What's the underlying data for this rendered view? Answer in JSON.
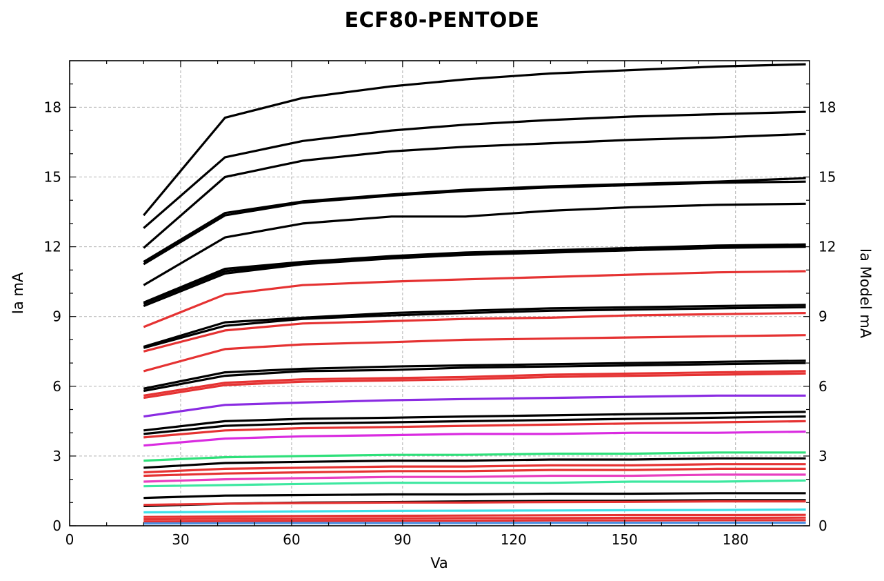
{
  "chart_data": {
    "type": "line",
    "title": "ECF80-PENTODE",
    "xlabel": "Va",
    "ylabel": "Ia mA",
    "ylabel_right": "Ia Model mA",
    "xlim": [
      0,
      200
    ],
    "ylim": [
      0,
      20
    ],
    "xticks": [
      0,
      30,
      60,
      90,
      120,
      150,
      180
    ],
    "yticks": [
      0,
      3,
      6,
      9,
      12,
      15,
      18
    ],
    "yticks_right": [
      0,
      3,
      6,
      9,
      12,
      15,
      18
    ],
    "grid": true,
    "legend": "none",
    "series": [
      {
        "color": "#000000",
        "x": [
          20,
          42,
          63,
          87,
          107,
          130,
          152,
          175,
          199
        ],
        "y": [
          13.35,
          17.55,
          18.4,
          18.9,
          19.2,
          19.45,
          19.6,
          19.75,
          19.85
        ]
      },
      {
        "color": "#000000",
        "x": [
          20,
          42,
          63,
          87,
          107,
          130,
          152,
          175,
          199
        ],
        "y": [
          12.8,
          15.85,
          16.55,
          17.0,
          17.25,
          17.45,
          17.6,
          17.7,
          17.8
        ]
      },
      {
        "color": "#000000",
        "x": [
          20,
          42,
          63,
          87,
          107,
          130,
          152,
          175,
          199
        ],
        "y": [
          11.95,
          15.0,
          15.7,
          16.1,
          16.3,
          16.45,
          16.6,
          16.7,
          16.85
        ]
      },
      {
        "color": "#000000",
        "x": [
          20,
          42,
          63,
          87,
          107,
          130,
          152,
          175,
          199
        ],
        "y": [
          11.35,
          13.45,
          13.95,
          14.25,
          14.45,
          14.6,
          14.7,
          14.8,
          14.95
        ]
      },
      {
        "color": "#000000",
        "x": [
          20,
          42,
          63,
          87,
          107,
          130,
          152,
          175,
          199
        ],
        "y": [
          11.25,
          13.35,
          13.9,
          14.2,
          14.4,
          14.55,
          14.65,
          14.75,
          14.8
        ]
      },
      {
        "color": "#000000",
        "x": [
          20,
          42,
          63,
          87,
          107,
          130,
          152,
          175,
          199
        ],
        "y": [
          10.35,
          12.4,
          13.0,
          13.3,
          13.3,
          13.55,
          13.7,
          13.8,
          13.85
        ]
      },
      {
        "color": "#000000",
        "x": [
          20,
          42,
          63,
          87,
          107,
          130,
          152,
          175,
          199
        ],
        "y": [
          9.6,
          11.05,
          11.35,
          11.6,
          11.75,
          11.85,
          11.95,
          12.05,
          12.1
        ]
      },
      {
        "color": "#000000",
        "x": [
          20,
          42,
          63,
          87,
          107,
          130,
          152,
          175,
          199
        ],
        "y": [
          9.55,
          10.95,
          11.3,
          11.55,
          11.7,
          11.8,
          11.9,
          12.0,
          12.05
        ]
      },
      {
        "color": "#000000",
        "x": [
          20,
          42,
          63,
          87,
          107,
          130,
          152,
          175,
          199
        ],
        "y": [
          9.45,
          10.85,
          11.25,
          11.5,
          11.65,
          11.75,
          11.85,
          11.95,
          12.0
        ]
      },
      {
        "color": "#e53232",
        "x": [
          20,
          42,
          63,
          87,
          107,
          130,
          152,
          175,
          199
        ],
        "y": [
          8.55,
          9.95,
          10.35,
          10.5,
          10.6,
          10.7,
          10.8,
          10.9,
          10.95
        ]
      },
      {
        "color": "#000000",
        "x": [
          20,
          42,
          63,
          87,
          107,
          130,
          152,
          175,
          199
        ],
        "y": [
          7.7,
          8.75,
          8.95,
          9.15,
          9.25,
          9.35,
          9.4,
          9.45,
          9.5
        ]
      },
      {
        "color": "#000000",
        "x": [
          20,
          42,
          63,
          87,
          107,
          130,
          152,
          175,
          199
        ],
        "y": [
          7.65,
          8.6,
          8.9,
          9.05,
          9.15,
          9.25,
          9.3,
          9.35,
          9.4
        ]
      },
      {
        "color": "#e53232",
        "x": [
          20,
          42,
          63,
          87,
          107,
          130,
          152,
          175,
          199
        ],
        "y": [
          7.5,
          8.4,
          8.7,
          8.8,
          8.9,
          8.95,
          9.05,
          9.1,
          9.15
        ]
      },
      {
        "color": "#e53232",
        "x": [
          20,
          42,
          63,
          87,
          107,
          130,
          152,
          175,
          199
        ],
        "y": [
          6.65,
          7.6,
          7.8,
          7.9,
          8.0,
          8.05,
          8.1,
          8.15,
          8.2
        ]
      },
      {
        "color": "#000000",
        "x": [
          20,
          42,
          63,
          87,
          107,
          130,
          152,
          175,
          199
        ],
        "y": [
          5.9,
          6.6,
          6.75,
          6.85,
          6.9,
          6.95,
          7.0,
          7.05,
          7.1
        ]
      },
      {
        "color": "#000000",
        "x": [
          20,
          42,
          63,
          87,
          107,
          130,
          152,
          175,
          199
        ],
        "y": [
          5.8,
          6.45,
          6.65,
          6.7,
          6.8,
          6.85,
          6.9,
          6.95,
          7.0
        ]
      },
      {
        "color": "#e53232",
        "x": [
          20,
          42,
          63,
          87,
          107,
          130,
          152,
          175,
          199
        ],
        "y": [
          5.6,
          6.15,
          6.3,
          6.35,
          6.4,
          6.5,
          6.55,
          6.6,
          6.65
        ]
      },
      {
        "color": "#e53232",
        "x": [
          20,
          42,
          63,
          87,
          107,
          130,
          152,
          175,
          199
        ],
        "y": [
          5.5,
          6.05,
          6.2,
          6.25,
          6.3,
          6.4,
          6.45,
          6.5,
          6.55
        ]
      },
      {
        "color": "#8a2be2",
        "x": [
          20,
          42,
          63,
          87,
          107,
          130,
          152,
          175,
          199
        ],
        "y": [
          4.7,
          5.2,
          5.3,
          5.4,
          5.45,
          5.5,
          5.55,
          5.6,
          5.6
        ]
      },
      {
        "color": "#000000",
        "x": [
          20,
          42,
          63,
          87,
          107,
          130,
          152,
          175,
          199
        ],
        "y": [
          4.1,
          4.5,
          4.6,
          4.65,
          4.7,
          4.75,
          4.8,
          4.85,
          4.9
        ]
      },
      {
        "color": "#000000",
        "x": [
          20,
          42,
          63,
          87,
          107,
          130,
          152,
          175,
          199
        ],
        "y": [
          3.95,
          4.3,
          4.4,
          4.45,
          4.5,
          4.55,
          4.6,
          4.65,
          4.7
        ]
      },
      {
        "color": "#e53232",
        "x": [
          20,
          42,
          63,
          87,
          107,
          130,
          152,
          175,
          199
        ],
        "y": [
          3.8,
          4.1,
          4.2,
          4.25,
          4.3,
          4.35,
          4.4,
          4.45,
          4.5
        ]
      },
      {
        "color": "#d92be0",
        "x": [
          20,
          42,
          63,
          87,
          107,
          130,
          152,
          175,
          199
        ],
        "y": [
          3.45,
          3.75,
          3.85,
          3.9,
          3.95,
          3.95,
          4.0,
          4.0,
          4.05
        ]
      },
      {
        "color": "#2ee07a",
        "x": [
          20,
          42,
          63,
          87,
          107,
          130,
          152,
          175,
          199
        ],
        "y": [
          2.8,
          2.95,
          3.0,
          3.05,
          3.05,
          3.1,
          3.1,
          3.15,
          3.15
        ]
      },
      {
        "color": "#000000",
        "x": [
          20,
          42,
          63,
          87,
          107,
          130,
          152,
          175,
          199
        ],
        "y": [
          2.5,
          2.7,
          2.75,
          2.8,
          2.8,
          2.85,
          2.85,
          2.9,
          2.9
        ]
      },
      {
        "color": "#e53232",
        "x": [
          20,
          42,
          63,
          87,
          107,
          130,
          152,
          175,
          199
        ],
        "y": [
          2.3,
          2.45,
          2.5,
          2.55,
          2.55,
          2.6,
          2.6,
          2.65,
          2.65
        ]
      },
      {
        "color": "#e53232",
        "x": [
          20,
          42,
          63,
          87,
          107,
          130,
          152,
          175,
          199
        ],
        "y": [
          2.15,
          2.25,
          2.3,
          2.35,
          2.35,
          2.4,
          2.4,
          2.45,
          2.45
        ]
      },
      {
        "color": "#e83ec0",
        "x": [
          20,
          42,
          63,
          87,
          107,
          130,
          152,
          175,
          199
        ],
        "y": [
          1.9,
          2.0,
          2.05,
          2.1,
          2.1,
          2.15,
          2.15,
          2.2,
          2.2
        ]
      },
      {
        "color": "#3de8a0",
        "x": [
          20,
          42,
          63,
          87,
          107,
          130,
          152,
          175,
          199
        ],
        "y": [
          1.7,
          1.75,
          1.8,
          1.85,
          1.85,
          1.85,
          1.9,
          1.9,
          1.95
        ]
      },
      {
        "color": "#000000",
        "x": [
          20,
          42,
          63,
          87,
          107,
          130,
          152,
          175,
          199
        ],
        "y": [
          1.2,
          1.3,
          1.32,
          1.35,
          1.35,
          1.38,
          1.38,
          1.4,
          1.4
        ]
      },
      {
        "color": "#000000",
        "x": [
          20,
          42,
          63,
          87,
          107,
          130,
          152,
          175,
          199
        ],
        "y": [
          0.85,
          0.95,
          1.0,
          1.02,
          1.05,
          1.07,
          1.08,
          1.1,
          1.1
        ]
      },
      {
        "color": "#e53232",
        "x": [
          20,
          42,
          63,
          87,
          107,
          130,
          152,
          175,
          199
        ],
        "y": [
          0.9,
          0.95,
          0.98,
          1.0,
          1.0,
          1.02,
          1.03,
          1.05,
          1.05
        ]
      },
      {
        "color": "#3ee0e8",
        "x": [
          20,
          42,
          63,
          87,
          107,
          130,
          152,
          175,
          199
        ],
        "y": [
          0.58,
          0.6,
          0.62,
          0.64,
          0.65,
          0.66,
          0.67,
          0.68,
          0.7
        ]
      },
      {
        "color": "#e53232",
        "x": [
          20,
          42,
          63,
          87,
          107,
          130,
          152,
          175,
          199
        ],
        "y": [
          0.38,
          0.4,
          0.42,
          0.43,
          0.44,
          0.45,
          0.46,
          0.46,
          0.47
        ]
      },
      {
        "color": "#e53232",
        "x": [
          20,
          42,
          63,
          87,
          107,
          130,
          152,
          175,
          199
        ],
        "y": [
          0.28,
          0.3,
          0.31,
          0.32,
          0.33,
          0.33,
          0.34,
          0.34,
          0.35
        ]
      },
      {
        "color": "#e53232",
        "x": [
          20,
          42,
          63,
          87,
          107,
          130,
          152,
          175,
          199
        ],
        "y": [
          0.18,
          0.2,
          0.21,
          0.22,
          0.22,
          0.23,
          0.23,
          0.24,
          0.24
        ]
      },
      {
        "color": "#4a90e2",
        "x": [
          20,
          42,
          63,
          87,
          107,
          130,
          152,
          175,
          199
        ],
        "y": [
          0.1,
          0.11,
          0.12,
          0.12,
          0.12,
          0.13,
          0.13,
          0.13,
          0.13
        ]
      }
    ]
  }
}
